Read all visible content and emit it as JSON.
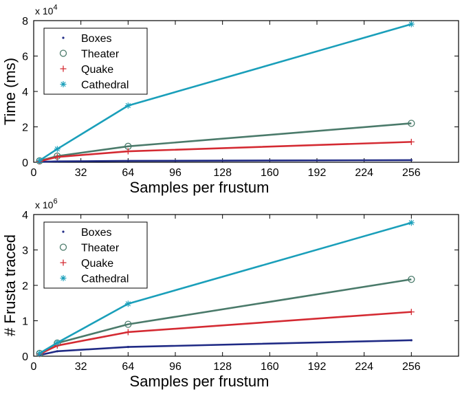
{
  "chart_data": [
    {
      "type": "line",
      "xlabel": "Samples per frustum",
      "ylabel": "Time (ms)",
      "exponent": {
        "base": "x 10",
        "power": "4"
      },
      "xlim": [
        0,
        288
      ],
      "ylim": [
        0,
        8
      ],
      "xticks": [
        0,
        32,
        64,
        96,
        128,
        160,
        192,
        224,
        256
      ],
      "yticks": [
        0,
        2,
        4,
        6,
        8
      ],
      "legend_position": "top-left",
      "x": [
        4,
        16,
        64,
        256
      ],
      "series": [
        {
          "name": "Boxes",
          "values": [
            0.02,
            0.05,
            0.08,
            0.12
          ],
          "color": "#1f2a85",
          "marker": "dot"
        },
        {
          "name": "Theater",
          "values": [
            0.08,
            0.35,
            0.9,
            2.2
          ],
          "color": "#4a7a6a",
          "marker": "circle"
        },
        {
          "name": "Quake",
          "values": [
            0.06,
            0.3,
            0.62,
            1.15
          ],
          "color": "#d42a32",
          "marker": "plus"
        },
        {
          "name": "Cathedral",
          "values": [
            0.1,
            0.75,
            3.2,
            7.8
          ],
          "color": "#1a9fba",
          "marker": "star"
        }
      ]
    },
    {
      "type": "line",
      "xlabel": "Samples per frustum",
      "ylabel": "# Frusta traced",
      "exponent": {
        "base": "x 10",
        "power": "6"
      },
      "xlim": [
        0,
        288
      ],
      "ylim": [
        0,
        4
      ],
      "xticks": [
        0,
        32,
        64,
        96,
        128,
        160,
        192,
        224,
        256
      ],
      "yticks": [
        0,
        1,
        2,
        3,
        4
      ],
      "legend_position": "top-left",
      "x": [
        4,
        16,
        64,
        256
      ],
      "series": [
        {
          "name": "Boxes",
          "values": [
            0.03,
            0.14,
            0.26,
            0.45
          ],
          "color": "#1f2a85",
          "marker": "dot"
        },
        {
          "name": "Theater",
          "values": [
            0.08,
            0.37,
            0.9,
            2.17
          ],
          "color": "#4a7a6a",
          "marker": "circle"
        },
        {
          "name": "Quake",
          "values": [
            0.06,
            0.3,
            0.68,
            1.25
          ],
          "color": "#d42a32",
          "marker": "plus"
        },
        {
          "name": "Cathedral",
          "values": [
            0.08,
            0.38,
            1.48,
            3.77
          ],
          "color": "#1a9fba",
          "marker": "star"
        }
      ]
    }
  ]
}
